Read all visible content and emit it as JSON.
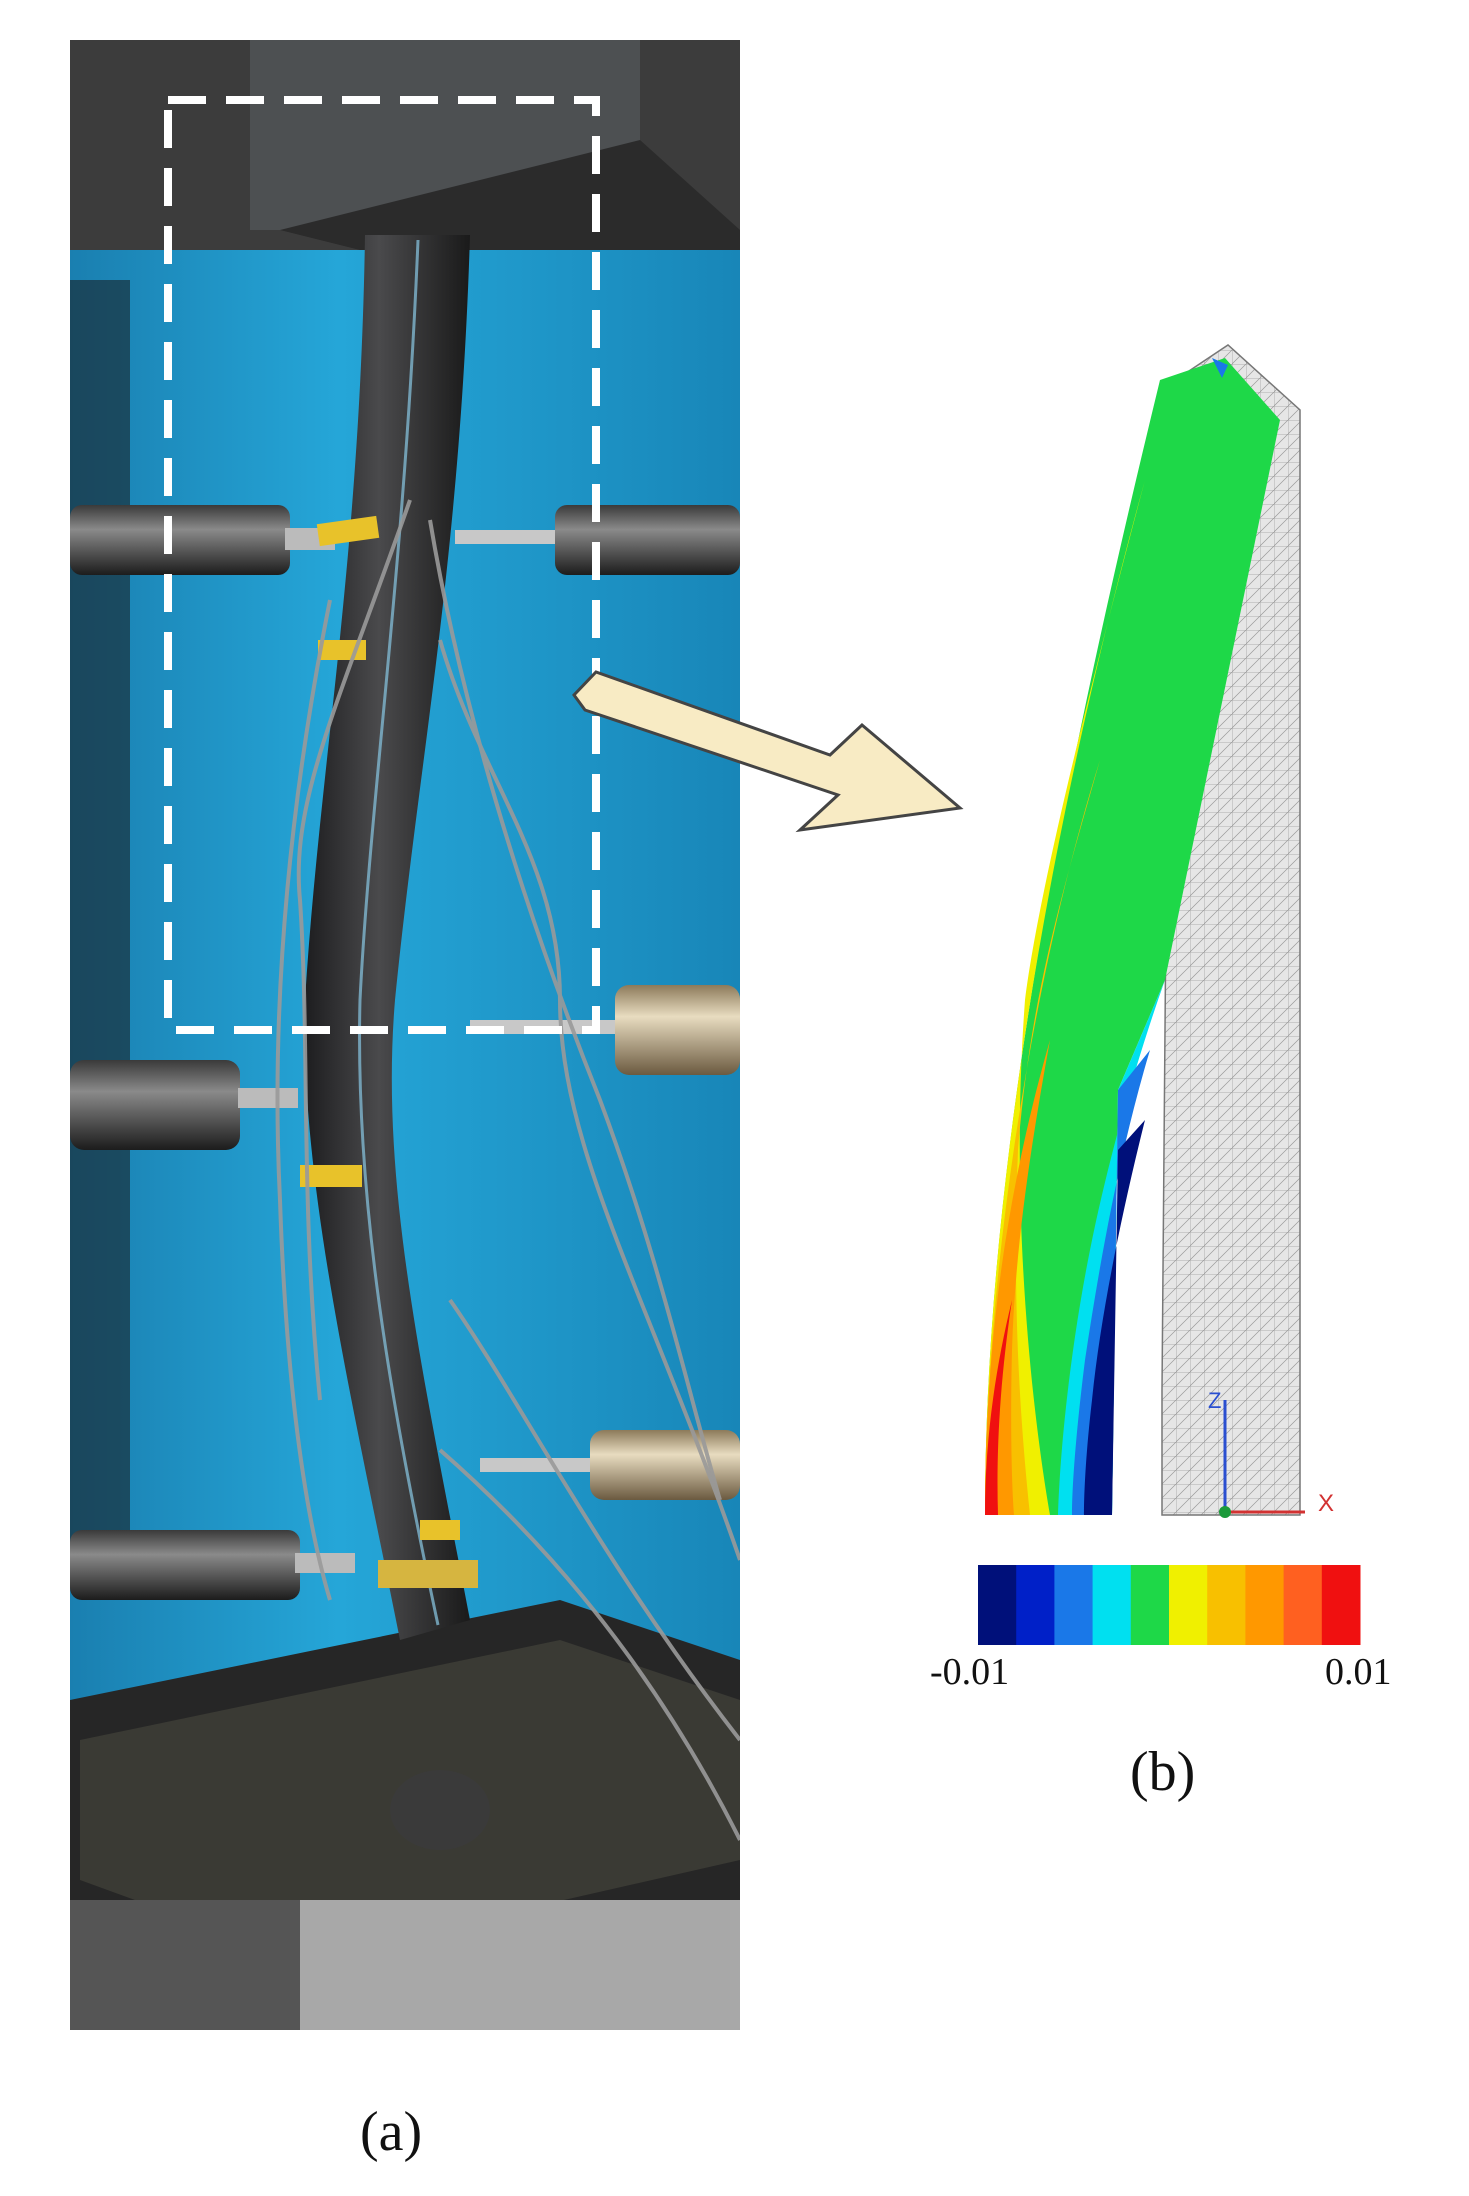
{
  "panel_a": {
    "label": "(a)"
  },
  "panel_b": {
    "label": "(b)",
    "axes": {
      "z_label": "Z",
      "x_label": "X"
    },
    "colorbar": {
      "min_label": "-0.01",
      "max_label": "0.01",
      "colors": [
        "#00107a",
        "#0020c8",
        "#1a78e8",
        "#00e0f0",
        "#1ed848",
        "#f0f000",
        "#f8c000",
        "#ff9800",
        "#ff6020",
        "#f01010"
      ]
    }
  },
  "colors": {
    "backdrop": "#1e96c8",
    "dashed_box": "#ffffff",
    "arrow_fill": "#f8ebc4",
    "mesh_fill": "#e4e4e4"
  }
}
